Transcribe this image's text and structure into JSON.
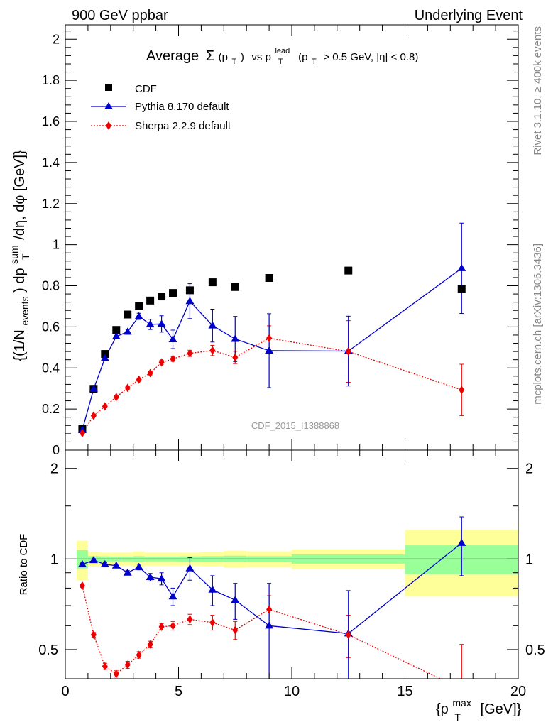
{
  "header": {
    "left": "900 GeV ppbar",
    "right": "Underlying Event"
  },
  "side_labels": {
    "rivet": "Rivet 3.1.10, ≥ 400k events",
    "mcplots": "mcplots.cern.ch [arXiv:1306.3436]"
  },
  "watermark": "CDF_2015_I1388868",
  "colors": {
    "data": "#000000",
    "pythia": "#0000cc",
    "sherpa": "#ee0000",
    "band_inner": "#99ff99",
    "band_outer": "#ffff99"
  },
  "chart_data": [
    {
      "type": "scatter",
      "panel": "main",
      "title": "Average Σ(p_T) vs p_T^lead (p_T > 0.5 GeV, |η| < 0.8)",
      "title_parts": {
        "average": "Average",
        "sigma": "Σ",
        "pt_paren": "(p",
        "t_sub": "T",
        "close": ")",
        "vs": "vs p",
        "lead_sup": "lead",
        "lead_sub": "T",
        "cuts_a": "(p",
        "cuts_sub": "T",
        "cuts_b": "> 0.5 GeV, |η| < 0.8)"
      },
      "ylabel": "{(1/N_events) dp_T^sum/dη, dφ [GeV]}",
      "ylabel_parts": {
        "a": "{(1/N",
        "events_sub": "events",
        "b": ") dp",
        "sum_sup": "sum",
        "t_sub": "T",
        "c": "/dη, dφ [GeV]}"
      },
      "xlim": [
        0,
        20
      ],
      "ylim": [
        0,
        2.07
      ],
      "yticks": [
        "0",
        "0.2",
        "0.4",
        "0.6",
        "0.8",
        "1",
        "1.2",
        "1.4",
        "1.6",
        "1.8",
        "2"
      ],
      "legend_position": "top-left",
      "series": [
        {
          "name": "CDF",
          "marker": "square",
          "x": [
            0.75,
            1.25,
            1.75,
            2.25,
            2.75,
            3.25,
            3.75,
            4.25,
            4.75,
            5.5,
            6.5,
            7.5,
            9.0,
            12.5,
            17.5
          ],
          "y": [
            0.102,
            0.298,
            0.468,
            0.585,
            0.66,
            0.7,
            0.728,
            0.748,
            0.765,
            0.778,
            0.817,
            0.794,
            0.838,
            0.874,
            0.785
          ]
        },
        {
          "name": "Pythia 8.170 default",
          "marker": "triangle",
          "line": "solid",
          "x": [
            0.75,
            1.25,
            1.75,
            2.25,
            2.75,
            3.25,
            3.75,
            4.25,
            4.75,
            5.5,
            6.5,
            7.5,
            9.0,
            12.5,
            17.5
          ],
          "y": [
            0.098,
            0.297,
            0.448,
            0.553,
            0.576,
            0.651,
            0.612,
            0.614,
            0.539,
            0.725,
            0.606,
            0.541,
            0.484,
            0.482,
            0.885
          ],
          "yerr": [
            0.005,
            0.008,
            0.01,
            0.012,
            0.012,
            0.015,
            0.025,
            0.04,
            0.045,
            0.085,
            0.08,
            0.11,
            0.18,
            0.17,
            0.22
          ]
        },
        {
          "name": "Sherpa 2.2.9 default",
          "marker": "diamond",
          "line": "dotted",
          "x": [
            0.75,
            1.25,
            1.75,
            2.25,
            2.75,
            3.25,
            3.75,
            4.25,
            4.75,
            5.5,
            6.5,
            7.5,
            9.0,
            12.5,
            17.5
          ],
          "y": [
            0.083,
            0.167,
            0.213,
            0.258,
            0.303,
            0.343,
            0.375,
            0.427,
            0.444,
            0.471,
            0.485,
            0.451,
            0.545,
            0.48,
            0.293
          ],
          "yerr": [
            0.003,
            0.004,
            0.005,
            0.006,
            0.007,
            0.008,
            0.009,
            0.01,
            0.012,
            0.015,
            0.025,
            0.03,
            0.06,
            0.15,
            0.125
          ]
        }
      ]
    },
    {
      "type": "scatter",
      "panel": "ratio",
      "ylabel": "Ratio to CDF",
      "xlabel": "{p_T^max [GeV]}",
      "xlabel_parts": {
        "a": "{p",
        "max_sup": "max",
        "t_sub": "T",
        "b": "[GeV]}"
      },
      "xlim": [
        0,
        20
      ],
      "ylim": [
        0.4,
        2.3
      ],
      "log_y": true,
      "xticks": [
        "0",
        "5",
        "10",
        "15",
        "20"
      ],
      "yticks": [
        "0.5",
        "1",
        "2"
      ],
      "reference_line": 1,
      "bands": {
        "edges": [
          0.5,
          1.0,
          1.5,
          2.0,
          2.5,
          3.0,
          3.5,
          4.0,
          4.5,
          5.0,
          6.0,
          7.0,
          8.0,
          10.0,
          15.0,
          20.0
        ],
        "inner": [
          0.07,
          0.022,
          0.02,
          0.018,
          0.018,
          0.022,
          0.018,
          0.018,
          0.018,
          0.02,
          0.022,
          0.025,
          0.022,
          0.035,
          0.11
        ],
        "outer": [
          0.15,
          0.055,
          0.05,
          0.05,
          0.05,
          0.06,
          0.05,
          0.05,
          0.05,
          0.05,
          0.055,
          0.065,
          0.06,
          0.075,
          0.25
        ]
      },
      "series": [
        {
          "name": "Pythia 8.170 default",
          "x": [
            0.75,
            1.25,
            1.75,
            2.25,
            2.75,
            3.25,
            3.75,
            4.25,
            4.75,
            5.5,
            6.5,
            7.5,
            9.0,
            12.5,
            17.5
          ],
          "y": [
            0.96,
            0.99,
            0.96,
            0.95,
            0.9,
            0.94,
            0.87,
            0.86,
            0.75,
            0.93,
            0.79,
            0.73,
            0.6,
            0.565,
            1.13
          ],
          "yerr": [
            0.01,
            0.012,
            0.012,
            0.012,
            0.015,
            0.02,
            0.025,
            0.04,
            0.05,
            0.08,
            0.09,
            0.1,
            0.23,
            0.22,
            0.25
          ]
        },
        {
          "name": "Sherpa 2.2.9 default",
          "x": [
            0.75,
            1.25,
            1.75,
            2.25,
            2.75,
            3.25,
            3.75,
            4.25,
            4.75,
            5.5,
            6.5,
            7.5,
            9.0,
            12.5,
            17.5
          ],
          "y": [
            0.815,
            0.56,
            0.44,
            0.415,
            0.445,
            0.48,
            0.52,
            0.595,
            0.6,
            0.63,
            0.615,
            0.58,
            0.68,
            0.56,
            0.37
          ],
          "yerr": [
            0.01,
            0.01,
            0.01,
            0.01,
            0.012,
            0.012,
            0.013,
            0.015,
            0.02,
            0.025,
            0.035,
            0.04,
            0.075,
            0.09,
            0.15
          ]
        }
      ]
    }
  ]
}
